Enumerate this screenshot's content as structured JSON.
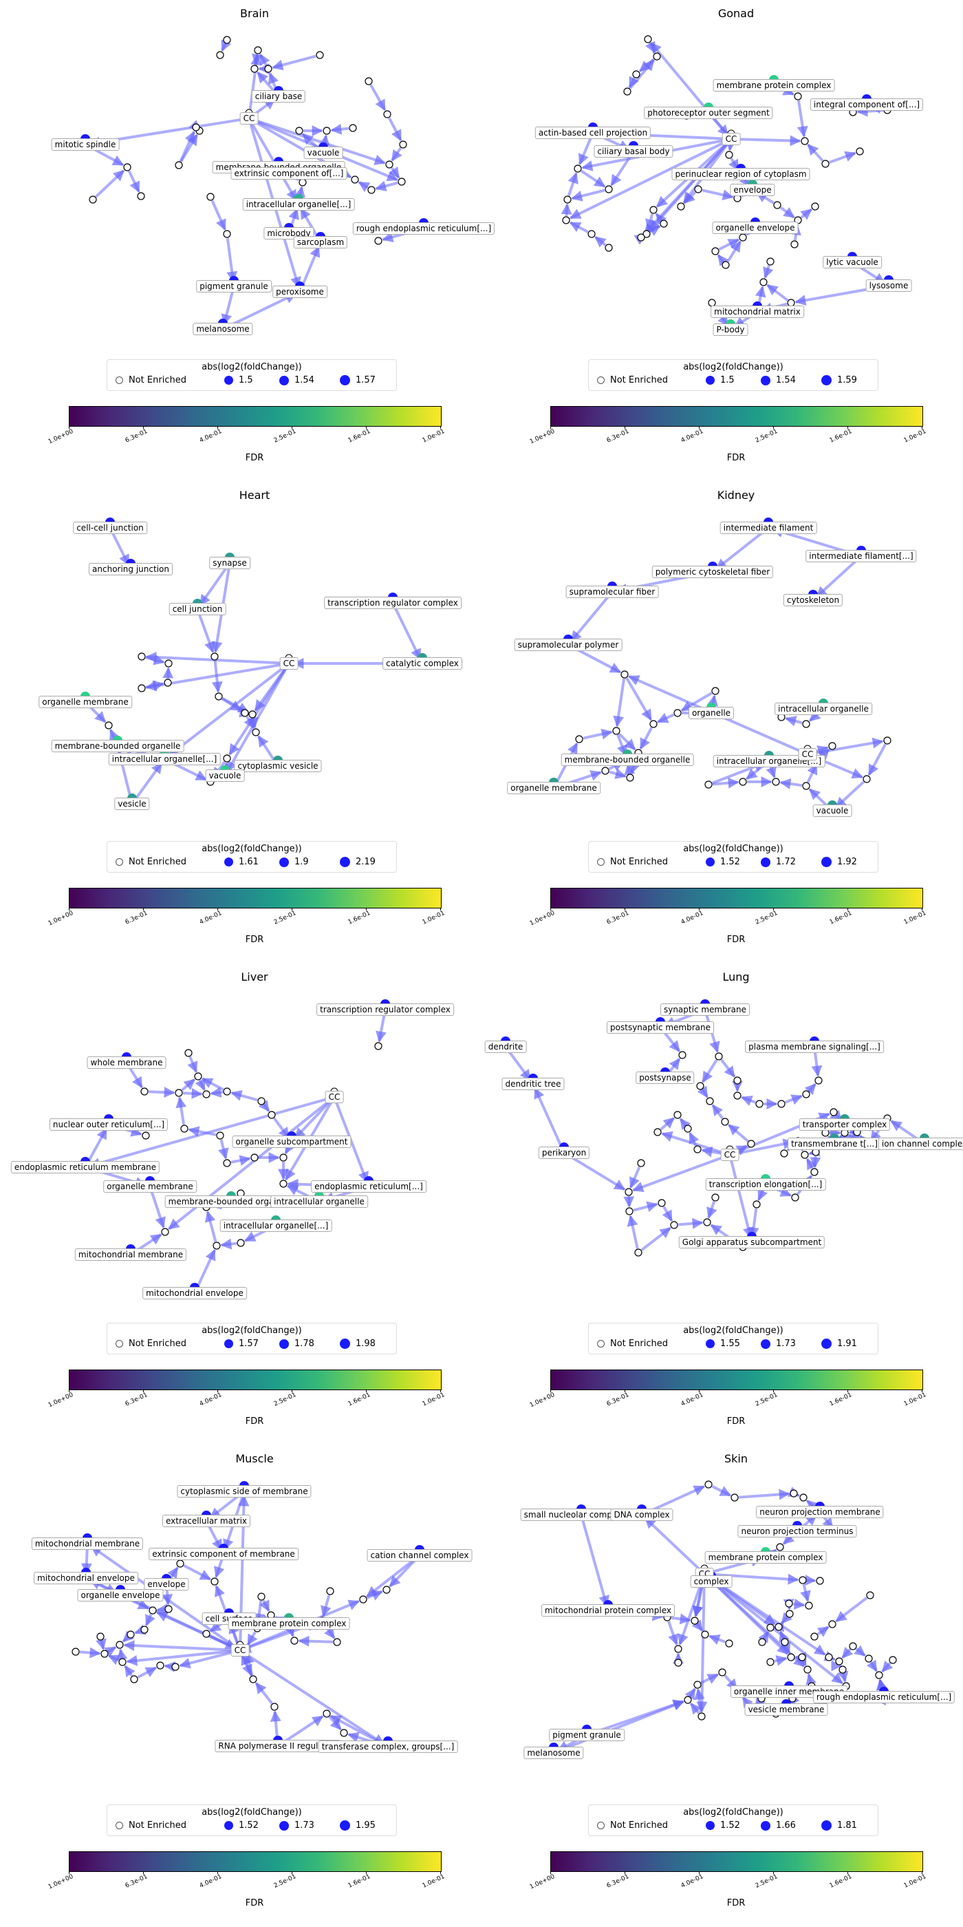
{
  "figure": {
    "legend_title": "abs(log2(foldChange))",
    "not_enriched_label": "Not Enriched",
    "colorbar_label": "FDR",
    "colorbar_ticks": [
      "1.0e+00",
      "6.3e-01",
      "4.0e-01",
      "2.5e-01",
      "1.6e-01",
      "1.0e-01"
    ]
  },
  "panels": [
    {
      "title": "Brain",
      "legend_sizes": [
        "1.5",
        "1.54",
        "1.57"
      ],
      "labels": [
        "ciliary base",
        "CC",
        "mitotic spindle",
        "membrane-bounded organelle",
        "extrinsic component of[...]",
        "vacuole",
        "intracellular organelle[...]",
        "microbody",
        "sarcoplasm",
        "rough endoplasmic reticulum[...]",
        "pigment granule",
        "peroxisome",
        "melanosome"
      ]
    },
    {
      "title": "Gonad",
      "legend_sizes": [
        "1.5",
        "1.54",
        "1.59"
      ],
      "labels": [
        "membrane protein complex",
        "photoreceptor outer segment",
        "integral component of[...]",
        "actin-based cell projection",
        "ciliary basal body",
        "CC",
        "perinuclear region of cytoplasm",
        "envelope",
        "organelle envelope",
        "lytic vacuole",
        "lysosome",
        "mitochondrial matrix",
        "P-body"
      ]
    },
    {
      "title": "Heart",
      "legend_sizes": [
        "1.61",
        "1.9",
        "2.19"
      ],
      "labels": [
        "cell-cell junction",
        "synapse",
        "anchoring junction",
        "cell junction",
        "transcription regulator complex",
        "CC",
        "catalytic complex",
        "organelle membrane",
        "membrane-bounded organelle",
        "intracellular organelle[...]",
        "cytoplasmic vesicle",
        "vacuole",
        "vesicle"
      ]
    },
    {
      "title": "Kidney",
      "legend_sizes": [
        "1.52",
        "1.72",
        "1.92"
      ],
      "labels": [
        "intermediate filament",
        "intermediate filament[...]",
        "polymeric cytoskeletal fiber",
        "supramolecular fiber",
        "cytoskeleton",
        "supramolecular polymer",
        "organelle",
        "intracellular organelle",
        "membrane-bounded organelle",
        "intracellular organelle[...]",
        "CC",
        "organelle membrane",
        "vacuole"
      ]
    },
    {
      "title": "Liver",
      "legend_sizes": [
        "1.57",
        "1.78",
        "1.98"
      ],
      "labels": [
        "transcription regulator complex",
        "whole membrane",
        "CC",
        "nuclear outer reticulum[...]",
        "organelle subcompartment",
        "endoplasmic reticulum membrane",
        "organelle membrane",
        "endoplasmic reticulum[...]",
        "membrane-bounded organelle",
        "intracellular organelle",
        "intracellular organelle[...]",
        "mitochondrial membrane",
        "mitochondrial envelope"
      ]
    },
    {
      "title": "Lung",
      "legend_sizes": [
        "1.55",
        "1.73",
        "1.91"
      ],
      "labels": [
        "synaptic membrane",
        "postsynaptic membrane",
        "dendrite",
        "plasma membrane signaling[...]",
        "postsynapse",
        "dendritic tree",
        "transporter complex",
        "transmembrane t[...]",
        "ion channel complex",
        "perikaryon",
        "CC",
        "transcription elongation[...]",
        "Golgi apparatus subcompartment"
      ]
    },
    {
      "title": "Muscle",
      "legend_sizes": [
        "1.52",
        "1.73",
        "1.95"
      ],
      "labels": [
        "cytoplasmic side of membrane",
        "extracellular matrix",
        "mitochondrial membrane",
        "extrinsic component of membrane",
        "cation channel complex",
        "mitochondrial envelope",
        "envelope",
        "organelle envelope",
        "cell surface",
        "membrane protein complex",
        "CC",
        "RNA polymerase II regula[...]",
        "transferase complex, groups[...]"
      ]
    },
    {
      "title": "Skin",
      "legend_sizes": [
        "1.52",
        "1.66",
        "1.81"
      ],
      "labels": [
        "small nucleolar complex[...]",
        "DNA complex",
        "neuron projection membrane",
        "neuron projection terminus",
        "membrane protein complex",
        "CC",
        "complex",
        "mitochondrial protein complex",
        "organelle inner membrane",
        "rough endoplasmic reticulum[...]",
        "vesicle membrane",
        "pigment granule",
        "melanosome"
      ]
    }
  ]
}
